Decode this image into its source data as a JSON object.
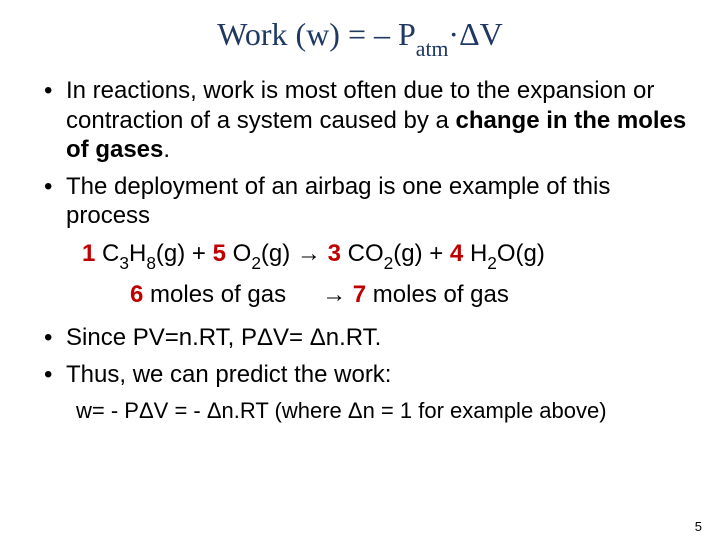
{
  "title_parts": {
    "pre": "Work (w) = – P",
    "sub": "atm",
    "post": "·ΔV"
  },
  "bullet1_parts": {
    "a": "In reactions, work is most often due to the expansion or contraction of a system caused by a ",
    "b": "change in the moles of gases",
    "c": "."
  },
  "bullet2": "The deployment of an airbag is one example of this process",
  "equation": {
    "c1": "1",
    "f1a": " C",
    "s1": "3",
    "f1b": "H",
    "s2": "8",
    "f1c": "(g) + ",
    "c2": "5",
    "f2a": " O",
    "s3": "2",
    "f2b": "(g) → ",
    "c3": "3",
    "f3a": " CO",
    "s4": "2",
    "f3b": "(g) + ",
    "c4": "4",
    "f4a": " H",
    "s5": "2",
    "f4b": "O(g)"
  },
  "moles": {
    "left_n": "6",
    "left_t": " moles of gas",
    "arrow": "→ ",
    "right_n": "7",
    "right_t": " moles of gas"
  },
  "bullet3": "Since PV=n.RT, PΔV= Δn.RT.",
  "bullet4": "Thus, we can predict the work:",
  "final": "w= - PΔV = - Δn.RT (where Δn = 1 for example above)",
  "pagenum": "5",
  "colors": {
    "title": "#1f3864",
    "accent": "#c00000",
    "text": "#000000",
    "bg": "#ffffff"
  }
}
